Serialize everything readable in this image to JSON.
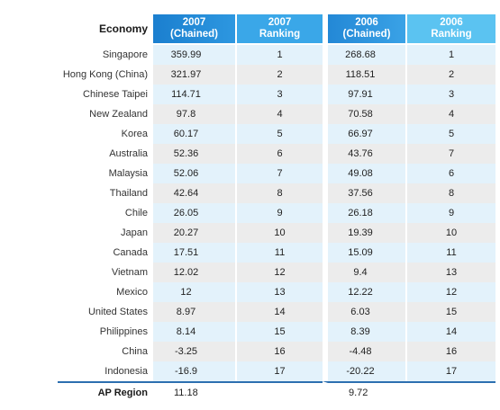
{
  "headers": {
    "economy": "Economy",
    "c2007_line1": "2007",
    "c2007_line2": "(Chained)",
    "r2007_line1": "2007",
    "r2007_line2": "Ranking",
    "c2006_line1": "2006",
    "c2006_line2": "(Chained)",
    "r2006_line1": "2006",
    "r2006_line2": "Ranking"
  },
  "rows": [
    {
      "economy": "Singapore",
      "v2007": "359.99",
      "r2007": "1",
      "v2006": "268.68",
      "r2006": "1"
    },
    {
      "economy": "Hong Kong (China)",
      "v2007": "321.97",
      "r2007": "2",
      "v2006": "118.51",
      "r2006": "2"
    },
    {
      "economy": "Chinese Taipei",
      "v2007": "114.71",
      "r2007": "3",
      "v2006": "97.91",
      "r2006": "3"
    },
    {
      "economy": "New Zealand",
      "v2007": "97.8",
      "r2007": "4",
      "v2006": "70.58",
      "r2006": "4"
    },
    {
      "economy": "Korea",
      "v2007": "60.17",
      "r2007": "5",
      "v2006": "66.97",
      "r2006": "5"
    },
    {
      "economy": "Australia",
      "v2007": "52.36",
      "r2007": "6",
      "v2006": "43.76",
      "r2006": "7"
    },
    {
      "economy": "Malaysia",
      "v2007": "52.06",
      "r2007": "7",
      "v2006": "49.08",
      "r2006": "6"
    },
    {
      "economy": "Thailand",
      "v2007": "42.64",
      "r2007": "8",
      "v2006": "37.56",
      "r2006": "8"
    },
    {
      "economy": "Chile",
      "v2007": "26.05",
      "r2007": "9",
      "v2006": "26.18",
      "r2006": "9"
    },
    {
      "economy": "Japan",
      "v2007": "20.27",
      "r2007": "10",
      "v2006": "19.39",
      "r2006": "10"
    },
    {
      "economy": "Canada",
      "v2007": "17.51",
      "r2007": "11",
      "v2006": "15.09",
      "r2006": "11"
    },
    {
      "economy": "Vietnam",
      "v2007": "12.02",
      "r2007": "12",
      "v2006": "9.4",
      "r2006": "13"
    },
    {
      "economy": "Mexico",
      "v2007": "12",
      "r2007": "13",
      "v2006": "12.22",
      "r2006": "12"
    },
    {
      "economy": "United States",
      "v2007": "8.97",
      "r2007": "14",
      "v2006": "6.03",
      "r2006": "15"
    },
    {
      "economy": "Philippines",
      "v2007": "8.14",
      "r2007": "15",
      "v2006": "8.39",
      "r2006": "14"
    },
    {
      "economy": "China",
      "v2007": "-3.25",
      "r2007": "16",
      "v2006": "-4.48",
      "r2006": "16"
    },
    {
      "economy": "Indonesia",
      "v2007": "-16.9",
      "r2007": "17",
      "v2006": "-20.22",
      "r2006": "17"
    }
  ],
  "footer": {
    "economy": "AP Region",
    "v2007": "11.18",
    "v2006": "9.72"
  },
  "colors": {
    "header_dark": "#1b7fcf",
    "header_light": "#5bc3f1",
    "row_blue": "#e3f2fb",
    "row_gray": "#ececec",
    "footer_rule": "#2c6fb0"
  }
}
